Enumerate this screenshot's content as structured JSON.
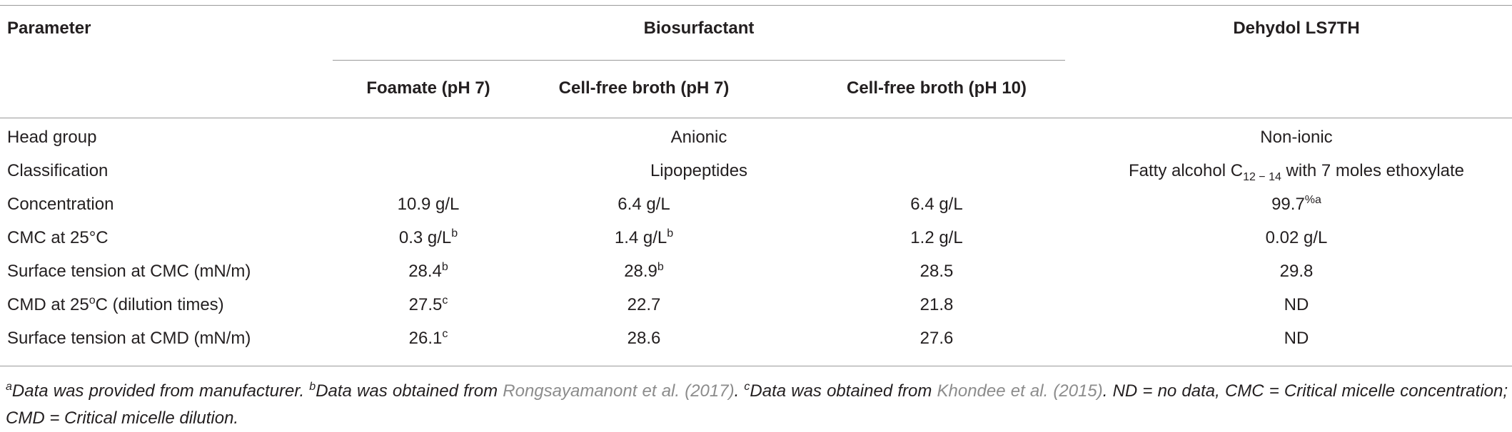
{
  "header": {
    "parameter": "Parameter",
    "group": "Biosurfactant",
    "reference": "Dehydol LS7TH",
    "columns": [
      "Foamate (pH 7)",
      "Cell-free broth (pH 7)",
      "Cell-free broth (pH 10)"
    ]
  },
  "rows": [
    {
      "label": [
        "Head group"
      ],
      "biosurfactant": [
        [
          "Anionic"
        ]
      ],
      "dehydol": [
        "Non-ionic"
      ]
    },
    {
      "label": [
        "Classification"
      ],
      "biosurfactant": [
        [
          "Lipopeptides"
        ]
      ],
      "dehydol": [
        "Fatty alcohol C",
        {
          "sub": "12 − 14"
        },
        " with 7 moles ethoxylate"
      ]
    },
    {
      "label": [
        "Concentration"
      ],
      "biosurfactant": [
        [
          "10.9 g/L"
        ],
        [
          "6.4 g/L"
        ],
        [
          "6.4 g/L"
        ]
      ],
      "dehydol": [
        "99.7",
        {
          "sup": "%a"
        }
      ]
    },
    {
      "label": [
        "CMC at 25°C"
      ],
      "biosurfactant": [
        [
          "0.3 g/L",
          {
            "sup": "b"
          }
        ],
        [
          "1.4 g/L",
          {
            "sup": "b"
          }
        ],
        [
          "1.2 g/L"
        ]
      ],
      "dehydol": [
        "0.02 g/L"
      ]
    },
    {
      "label": [
        "Surface tension at CMC (mN/m)"
      ],
      "biosurfactant": [
        [
          "28.4",
          {
            "sup": "b"
          }
        ],
        [
          "28.9",
          {
            "sup": "b"
          }
        ],
        [
          "28.5"
        ]
      ],
      "dehydol": [
        "29.8"
      ]
    },
    {
      "label": [
        "CMD at 25",
        {
          "sup": "o"
        },
        "C (dilution times)"
      ],
      "biosurfactant": [
        [
          "27.5",
          {
            "sup": "c"
          }
        ],
        [
          "22.7"
        ],
        [
          "21.8"
        ]
      ],
      "dehydol": [
        "ND"
      ]
    },
    {
      "label": [
        "Surface tension at CMD (mN/m)"
      ],
      "biosurfactant": [
        [
          "26.1",
          {
            "sup": "c"
          }
        ],
        [
          "28.6"
        ],
        [
          "27.6"
        ]
      ],
      "dehydol": [
        "ND"
      ]
    }
  ],
  "footnote": [
    {
      "sup": "a"
    },
    "Data was provided from manufacturer. ",
    {
      "sup": "b"
    },
    "Data was obtained from ",
    {
      "link": "Rongsayamanont et al. (2017)"
    },
    ". ",
    {
      "sup": "c"
    },
    "Data was obtained from ",
    {
      "link": "Khondee et al. (2015)"
    },
    ". ND = no data, CMC = Critical micelle concentration; CMD = Critical micelle dilution."
  ]
}
